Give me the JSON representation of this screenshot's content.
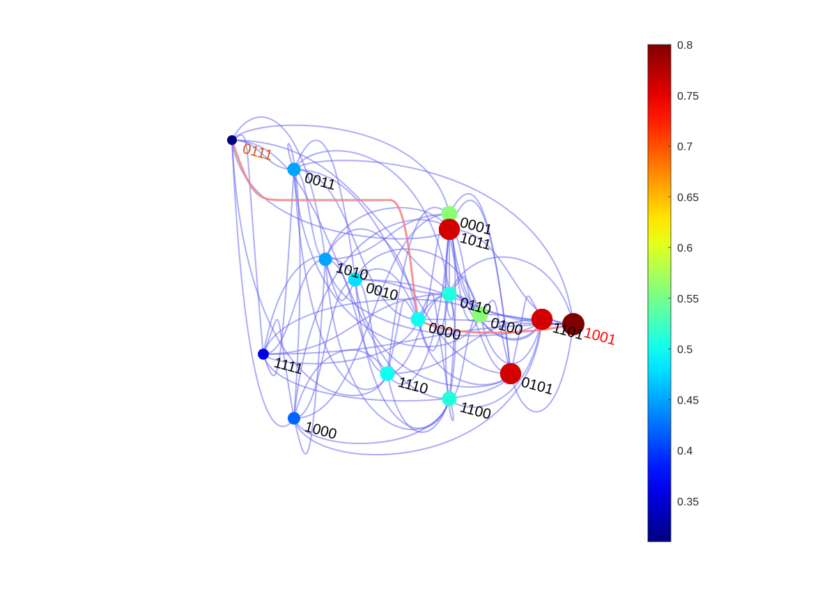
{
  "graph": {
    "nodes": [
      {
        "id": "0111",
        "value": 0.31,
        "label_color": "#d95319"
      },
      {
        "id": "0011",
        "value": 0.45
      },
      {
        "id": "1111",
        "value": 0.36
      },
      {
        "id": "1010",
        "value": 0.45
      },
      {
        "id": "0010",
        "value": 0.48
      },
      {
        "id": "1000",
        "value": 0.42
      },
      {
        "id": "1110",
        "value": 0.5
      },
      {
        "id": "0000",
        "value": 0.5
      },
      {
        "id": "1100",
        "value": 0.51
      },
      {
        "id": "0110",
        "value": 0.51
      },
      {
        "id": "0001",
        "value": 0.56
      },
      {
        "id": "0100",
        "value": 0.56
      },
      {
        "id": "1011",
        "value": 0.76
      },
      {
        "id": "0101",
        "value": 0.76
      },
      {
        "id": "1101",
        "value": 0.76
      },
      {
        "id": "1001",
        "value": 0.8,
        "label_color": "#ff0000"
      }
    ],
    "highlight_path": [
      "0111",
      "0000",
      "1001"
    ],
    "edge_color": "#5a5aef",
    "highlight_color": "#f08080"
  },
  "colorbar": {
    "colormap": "jet",
    "range": [
      0.31,
      0.8
    ],
    "ticks": [
      "0.35",
      "0.4",
      "0.45",
      "0.5",
      "0.55",
      "0.6",
      "0.65",
      "0.7",
      "0.75",
      "0.8"
    ]
  }
}
